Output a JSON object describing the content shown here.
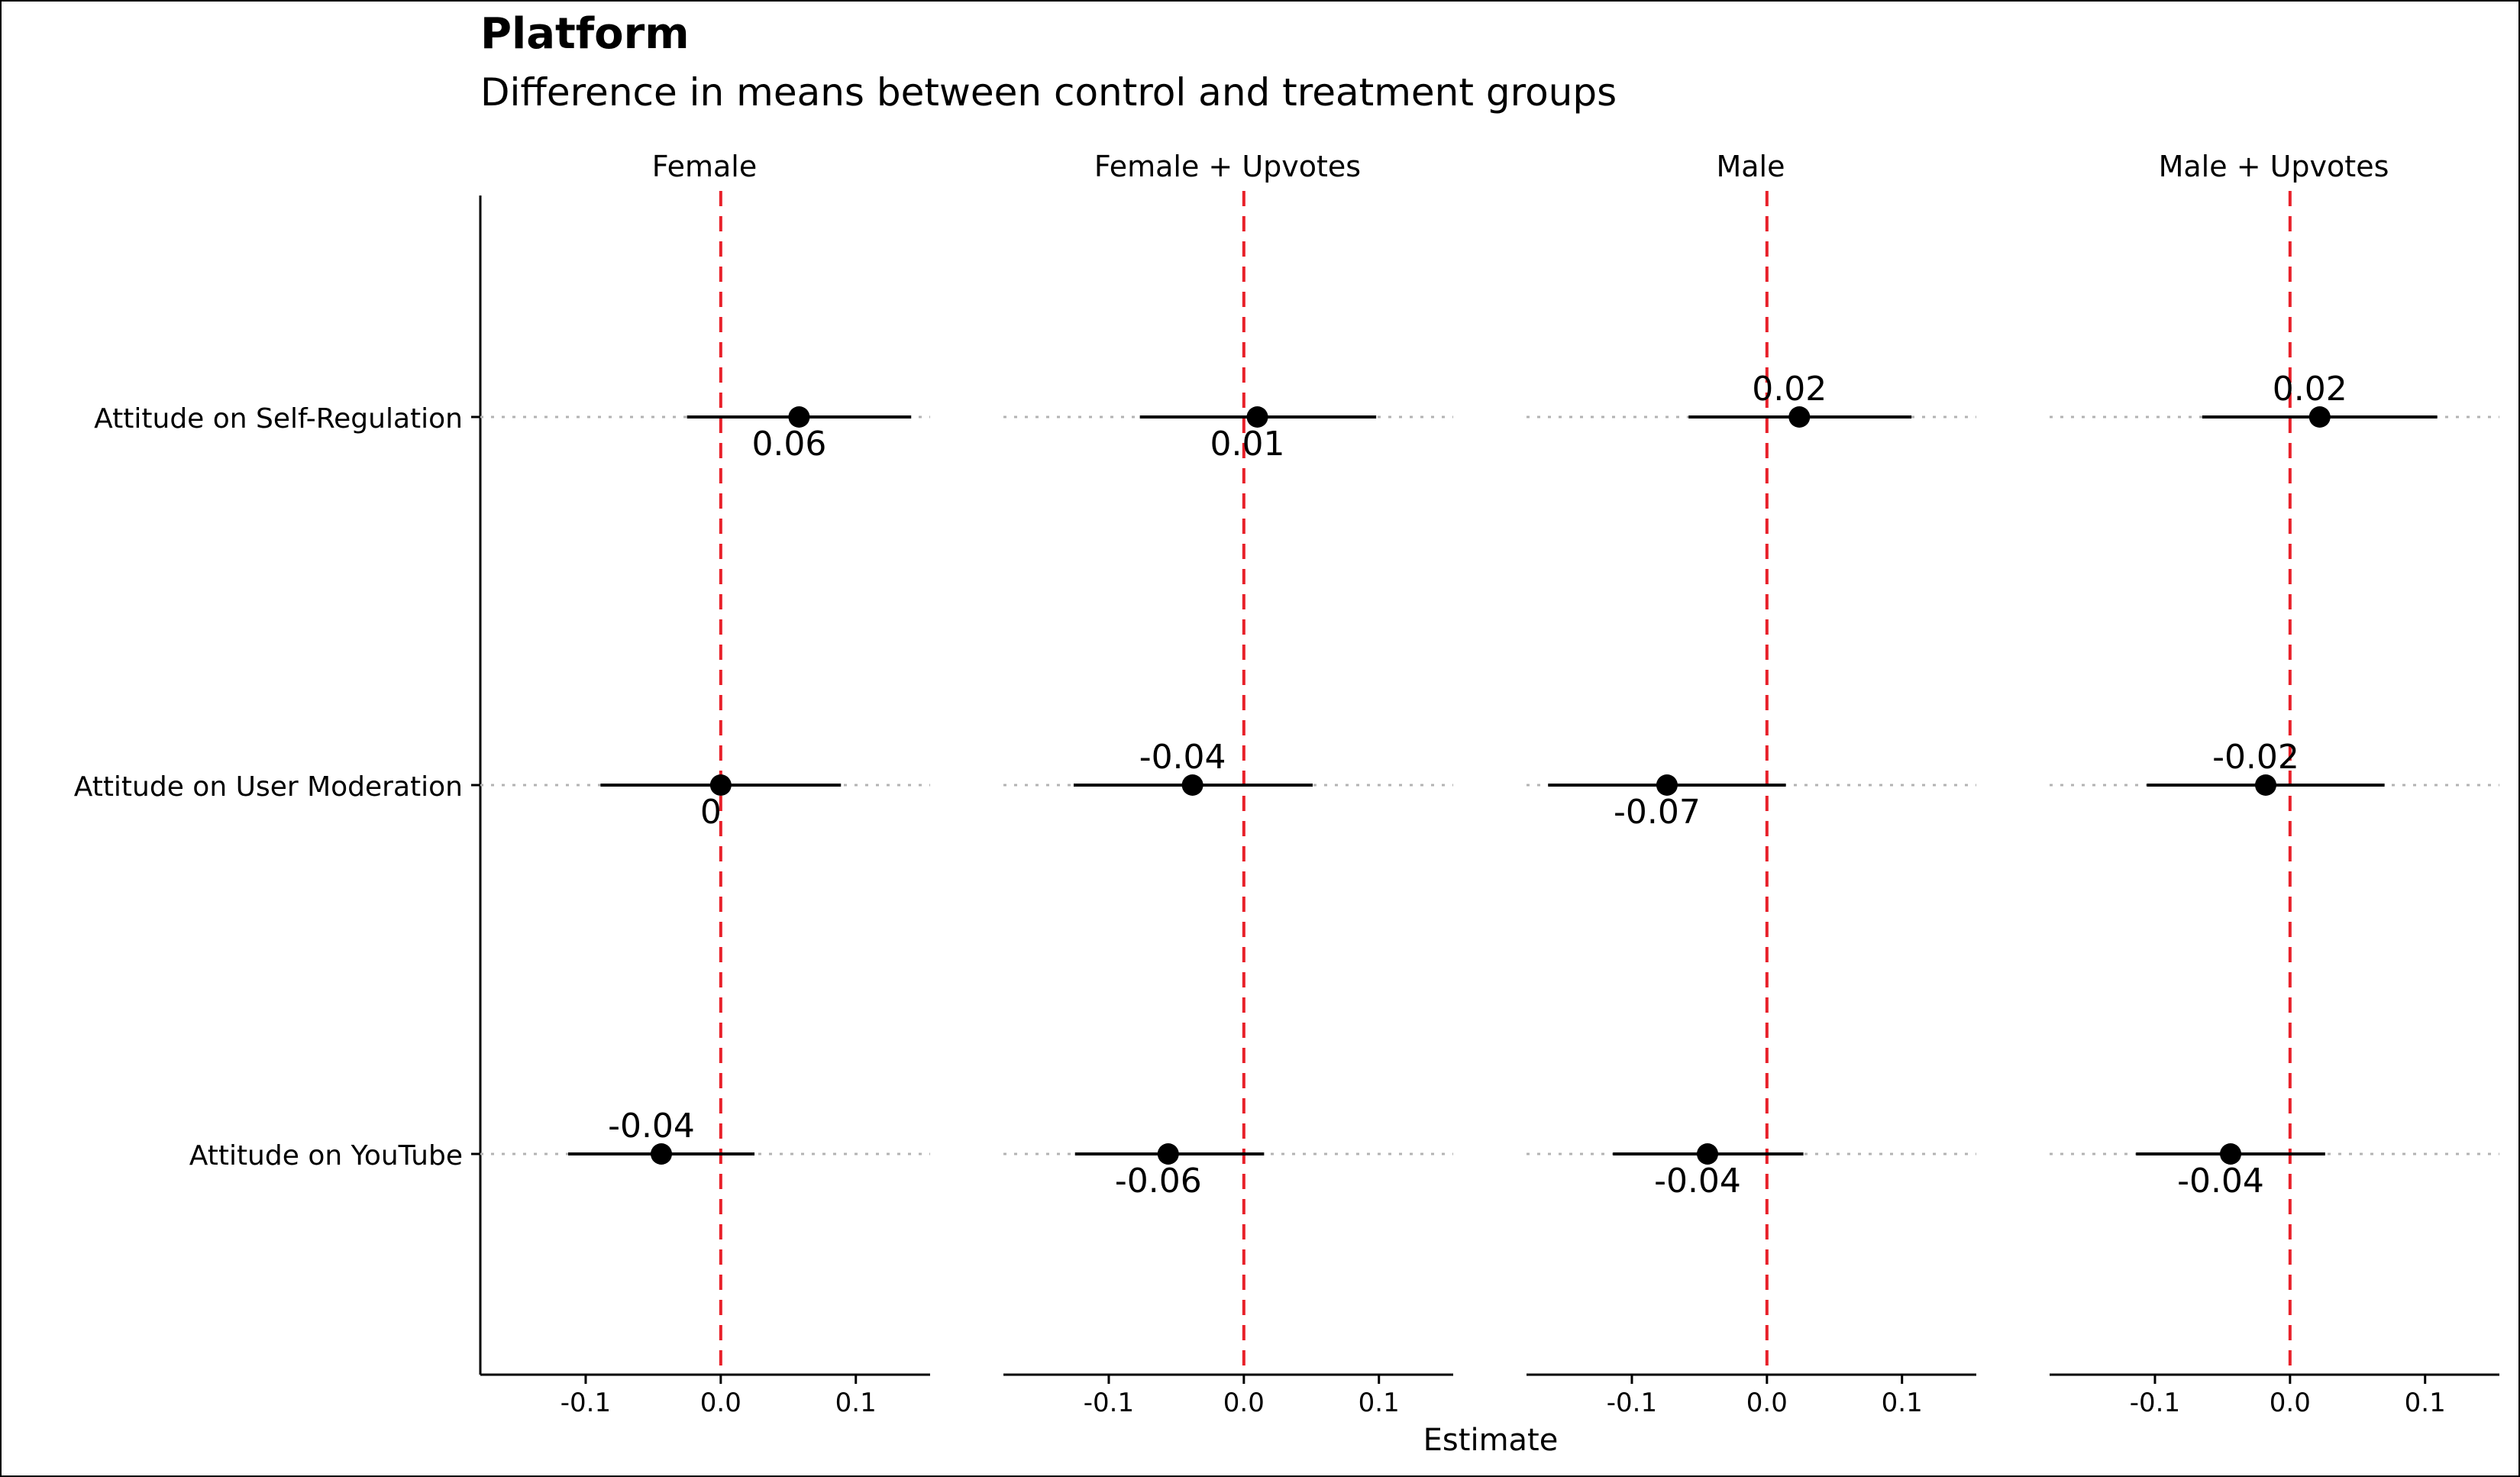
{
  "chart_data": {
    "type": "scatter",
    "title": "Platform",
    "subtitle": "Difference in means between control and treatment groups",
    "xlabel": "Estimate",
    "ylabel": "",
    "xlim": [
      -0.178,
      0.155
    ],
    "xticks": [
      -0.1,
      0.0,
      0.1
    ],
    "xtick_labels": [
      "-0.1",
      "0.0",
      "0.1"
    ],
    "reference_line": {
      "x": 0,
      "style": "dashed",
      "color": "#e8212a"
    },
    "categories": [
      "Attitude on Self-Regulation",
      "Attitude on User Moderation",
      "Attitude on YouTube"
    ],
    "grid": "horizontal dotted per category",
    "panels": [
      {
        "name": "Female",
        "points": [
          {
            "category": "Attitude on Self-Regulation",
            "estimate": 0.058,
            "ci_low": -0.025,
            "ci_high": 0.141,
            "label": "0.06",
            "label_pos": "below"
          },
          {
            "category": "Attitude on User Moderation",
            "estimate": 0.0,
            "ci_low": -0.089,
            "ci_high": 0.089,
            "label": "0",
            "label_pos": "below"
          },
          {
            "category": "Attitude on YouTube",
            "estimate": -0.044,
            "ci_low": -0.113,
            "ci_high": 0.025,
            "label": "-0.04",
            "label_pos": "above"
          }
        ]
      },
      {
        "name": "Female + Upvotes",
        "points": [
          {
            "category": "Attitude on Self-Regulation",
            "estimate": 0.01,
            "ci_low": -0.077,
            "ci_high": 0.098,
            "label": "0.01",
            "label_pos": "below"
          },
          {
            "category": "Attitude on User Moderation",
            "estimate": -0.038,
            "ci_low": -0.126,
            "ci_high": 0.051,
            "label": "-0.04",
            "label_pos": "above"
          },
          {
            "category": "Attitude on YouTube",
            "estimate": -0.056,
            "ci_low": -0.125,
            "ci_high": 0.015,
            "label": "-0.06",
            "label_pos": "below"
          }
        ]
      },
      {
        "name": "Male",
        "points": [
          {
            "category": "Attitude on Self-Regulation",
            "estimate": 0.024,
            "ci_low": -0.058,
            "ci_high": 0.107,
            "label": "0.02",
            "label_pos": "above"
          },
          {
            "category": "Attitude on User Moderation",
            "estimate": -0.074,
            "ci_low": -0.162,
            "ci_high": 0.014,
            "label": "-0.07",
            "label_pos": "below"
          },
          {
            "category": "Attitude on YouTube",
            "estimate": -0.044,
            "ci_low": -0.114,
            "ci_high": 0.027,
            "label": "-0.04",
            "label_pos": "below"
          }
        ]
      },
      {
        "name": "Male + Upvotes",
        "points": [
          {
            "category": "Attitude on Self-Regulation",
            "estimate": 0.022,
            "ci_low": -0.065,
            "ci_high": 0.109,
            "label": "0.02",
            "label_pos": "above"
          },
          {
            "category": "Attitude on User Moderation",
            "estimate": -0.018,
            "ci_low": -0.106,
            "ci_high": 0.07,
            "label": "-0.02",
            "label_pos": "above"
          },
          {
            "category": "Attitude on YouTube",
            "estimate": -0.044,
            "ci_low": -0.114,
            "ci_high": 0.026,
            "label": "-0.04",
            "label_pos": "below"
          }
        ]
      }
    ]
  }
}
